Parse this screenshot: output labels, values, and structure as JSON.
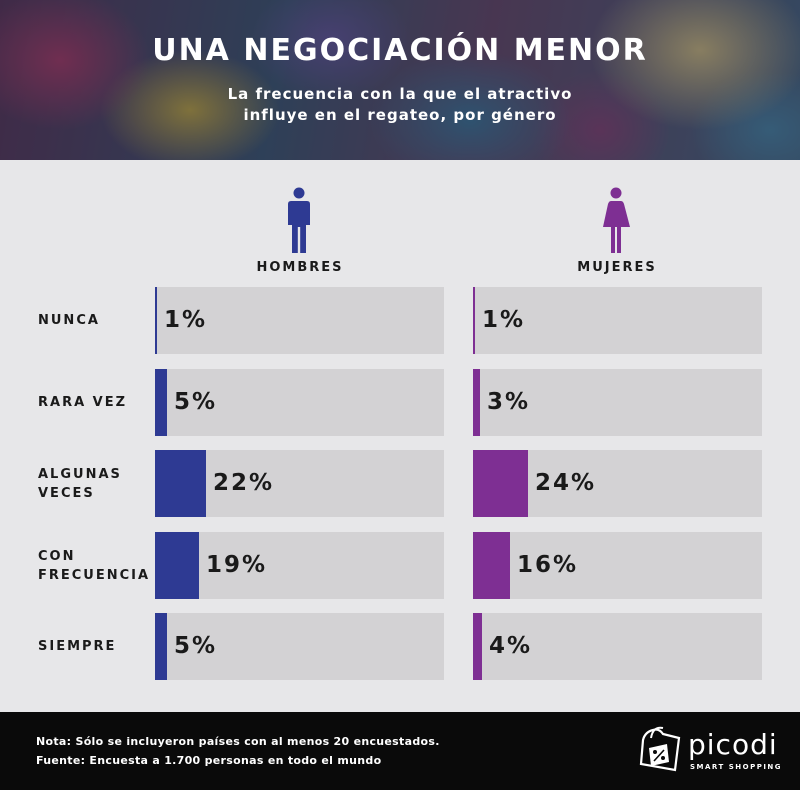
{
  "header": {
    "title": "UNA NEGOCIACIÓN MENOR",
    "subtitle_line1": "La frecuencia con la que el atractivo",
    "subtitle_line2": "influye en el regateo, por género"
  },
  "columns": {
    "men_label": "HOMBRES",
    "women_label": "MUJERES",
    "men_icon": "man-icon",
    "women_icon": "woman-icon"
  },
  "colors": {
    "men": "#2e3a93",
    "women": "#7e2f93",
    "track": "#d3d2d4"
  },
  "chart_data": {
    "type": "bar",
    "orientation": "horizontal",
    "title": "UNA NEGOCIACIÓN MENOR",
    "subtitle": "La frecuencia con la que el atractivo influye en el regateo, por género",
    "categories": [
      [
        "NUNCA"
      ],
      [
        "RARA VEZ"
      ],
      [
        "ALGUNAS",
        "VECES"
      ],
      [
        "CON",
        "FRECUENCIA"
      ],
      [
        "SIEMPRE"
      ]
    ],
    "series": [
      {
        "name": "HOMBRES",
        "values": [
          1,
          5,
          22,
          19,
          5
        ],
        "labels": [
          "1%",
          "5%",
          "22%",
          "19%",
          "5%"
        ]
      },
      {
        "name": "MUJERES",
        "values": [
          1,
          3,
          24,
          16,
          4
        ],
        "labels": [
          "1%",
          "3%",
          "24%",
          "16%",
          "4%"
        ]
      }
    ],
    "xlim": [
      0,
      100
    ],
    "unit": "%",
    "legend": "none",
    "grid": false
  },
  "footer": {
    "note": "Nota: Sólo se incluyeron países con al menos 20 encuestados.",
    "source": "Fuente: Encuesta a 1.700 personas en todo el mundo",
    "brand": "picodi",
    "tagline": "SMART SHOPPING",
    "logo_icon": "shopping-bag-percent-icon"
  }
}
